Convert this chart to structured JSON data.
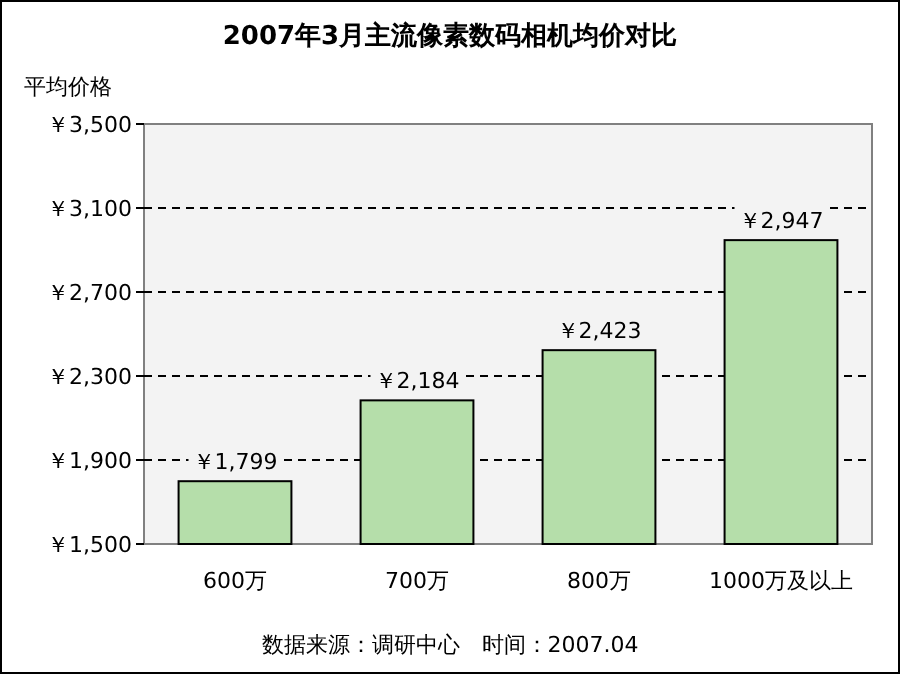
{
  "chart_data": {
    "type": "bar",
    "title": "2007年3月主流像素数码相机均价对比",
    "ylabel": "平均价格",
    "categories": [
      "600万",
      "700万",
      "800万",
      "1000万及以上"
    ],
    "values": [
      1799,
      2184,
      2423,
      2947
    ],
    "value_labels": [
      "￥1,799",
      "￥2,184",
      "￥2,423",
      "￥2,947"
    ],
    "color": "#b5deaa",
    "ylim": [
      1500,
      3500
    ],
    "yticks": [
      {
        "value": 1500,
        "label": "￥1,500"
      },
      {
        "value": 1900,
        "label": "￥1,900"
      },
      {
        "value": 2300,
        "label": "￥2,300"
      },
      {
        "value": 2700,
        "label": "￥2,700"
      },
      {
        "value": 3100,
        "label": "￥3,100"
      },
      {
        "value": 3500,
        "label": "￥3,500"
      }
    ],
    "grid": "y",
    "annotations": [
      "数据来源：调研中心　时间：2007.04"
    ]
  }
}
